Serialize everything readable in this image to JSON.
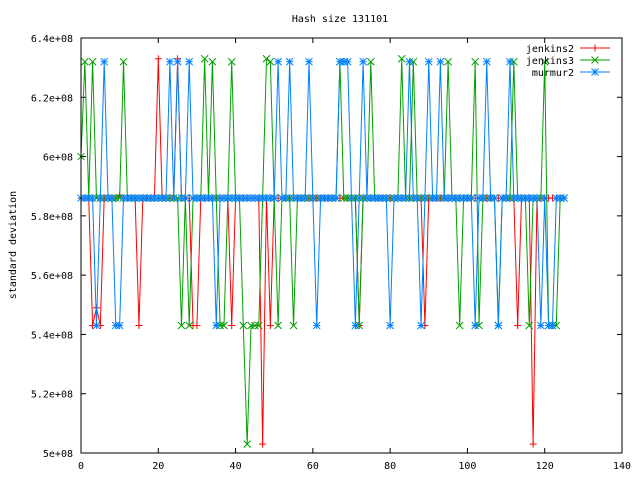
{
  "chart_data": {
    "type": "line",
    "title": "Hash size 131101",
    "xlabel": "",
    "ylabel": "standard deviation",
    "xlim": [
      0,
      140
    ],
    "ylim": [
      500000000,
      640000000
    ],
    "x_ticks": [
      {
        "v": 0,
        "label": "0"
      },
      {
        "v": 20,
        "label": "20"
      },
      {
        "v": 40,
        "label": "40"
      },
      {
        "v": 60,
        "label": "60"
      },
      {
        "v": 80,
        "label": "80"
      },
      {
        "v": 100,
        "label": "100"
      },
      {
        "v": 120,
        "label": "120"
      },
      {
        "v": 140,
        "label": "140"
      }
    ],
    "y_ticks": [
      {
        "v": 500000000,
        "label": "5e+08"
      },
      {
        "v": 520000000,
        "label": "5.2e+08"
      },
      {
        "v": 540000000,
        "label": "5.4e+08"
      },
      {
        "v": 560000000,
        "label": "5.6e+08"
      },
      {
        "v": 580000000,
        "label": "5.8e+08"
      },
      {
        "v": 600000000,
        "label": "6e+08"
      },
      {
        "v": 620000000,
        "label": "6.2e+08"
      },
      {
        "v": 640000000,
        "label": "6.4e+08"
      }
    ],
    "grid": false,
    "legend_position": "top-right",
    "series": [
      {
        "name": "jenkins2",
        "color": "#ff0000",
        "marker": "plus",
        "values": [
          586,
          586,
          586,
          543,
          549,
          543,
          586,
          586,
          586,
          586,
          587,
          586,
          586,
          586,
          586,
          543,
          586,
          586,
          586,
          586,
          633,
          586,
          586,
          586,
          586,
          633,
          586,
          586,
          586,
          543,
          543,
          586,
          586,
          586,
          586,
          586,
          586,
          586,
          586,
          543,
          586,
          586,
          586,
          586,
          586,
          586,
          586,
          503,
          586,
          543,
          586,
          586,
          586,
          586,
          586,
          586,
          586,
          586,
          586,
          586,
          586,
          586,
          586,
          586,
          586,
          586,
          586,
          586,
          586,
          586,
          586,
          586,
          543,
          586,
          586,
          586,
          586,
          586,
          586,
          586,
          586,
          586,
          586,
          586,
          586,
          586,
          586,
          586,
          586,
          543,
          586,
          586,
          586,
          586,
          586,
          586,
          586,
          586,
          586,
          586,
          586,
          586,
          586,
          586,
          586,
          586,
          586,
          586,
          586,
          586,
          586,
          586,
          586,
          543,
          586,
          586,
          586,
          503,
          586,
          586,
          586,
          586,
          586,
          586,
          586,
          586
        ]
      },
      {
        "name": "jenkins3",
        "color": "#00a000",
        "marker": "x",
        "values": [
          600,
          632,
          586,
          632,
          586,
          586,
          586,
          586,
          586,
          586,
          586,
          632,
          586,
          586,
          586,
          586,
          586,
          586,
          586,
          586,
          586,
          586,
          586,
          586,
          586,
          586,
          543,
          586,
          543,
          586,
          586,
          586,
          633,
          586,
          632,
          586,
          543,
          543,
          586,
          632,
          586,
          586,
          543,
          503,
          543,
          543,
          543,
          586,
          633,
          632,
          586,
          543,
          586,
          586,
          586,
          543,
          586,
          586,
          586,
          586,
          586,
          586,
          586,
          586,
          586,
          586,
          586,
          632,
          586,
          586,
          586,
          586,
          543,
          586,
          586,
          632,
          586,
          586,
          586,
          586,
          586,
          586,
          586,
          633,
          586,
          586,
          632,
          586,
          586,
          586,
          586,
          586,
          586,
          586,
          586,
          632,
          586,
          586,
          543,
          586,
          586,
          586,
          632,
          543,
          586,
          586,
          586,
          586,
          543,
          586,
          586,
          586,
          632,
          586,
          586,
          586,
          543,
          586,
          586,
          586,
          632,
          543,
          543,
          543,
          586,
          586
        ]
      },
      {
        "name": "murmur2",
        "color": "#0080ff",
        "marker": "star",
        "values": [
          586,
          586,
          586,
          586,
          543,
          586,
          632,
          586,
          586,
          543,
          543,
          586,
          586,
          586,
          586,
          586,
          586,
          586,
          586,
          586,
          586,
          586,
          586,
          632,
          586,
          632,
          586,
          586,
          632,
          586,
          586,
          586,
          586,
          586,
          586,
          543,
          586,
          586,
          586,
          586,
          586,
          586,
          586,
          586,
          586,
          586,
          586,
          586,
          586,
          586,
          586,
          632,
          586,
          586,
          632,
          586,
          586,
          586,
          586,
          632,
          586,
          543,
          586,
          586,
          586,
          586,
          586,
          632,
          632,
          632,
          586,
          543,
          586,
          632,
          586,
          586,
          586,
          586,
          586,
          586,
          543,
          586,
          586,
          586,
          586,
          632,
          586,
          586,
          543,
          586,
          632,
          586,
          586,
          632,
          586,
          586,
          586,
          586,
          586,
          586,
          586,
          586,
          543,
          586,
          586,
          632,
          586,
          586,
          543,
          586,
          586,
          632,
          586,
          586,
          586,
          586,
          586,
          586,
          586,
          543,
          586,
          543,
          543,
          586,
          586,
          586
        ]
      }
    ]
  }
}
